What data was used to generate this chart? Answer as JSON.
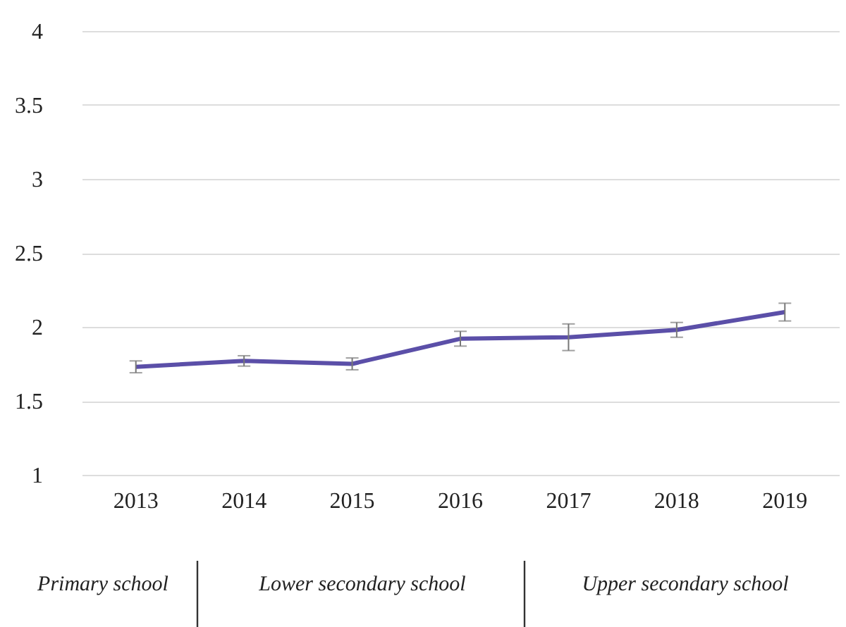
{
  "chart_data": {
    "type": "line",
    "categories": [
      "2013",
      "2014",
      "2015",
      "2016",
      "2017",
      "2018",
      "2019"
    ],
    "series": [
      {
        "color": "#5b4fa8",
        "values": [
          1.73,
          1.77,
          1.75,
          1.92,
          1.93,
          1.98,
          2.1
        ],
        "errors": [
          0.04,
          0.035,
          0.04,
          0.05,
          0.09,
          0.05,
          0.06
        ]
      }
    ],
    "ylim": [
      1,
      4
    ],
    "yticks": [
      1,
      1.5,
      2,
      2.5,
      3,
      3.5,
      4
    ],
    "grid": "y",
    "marker": "none",
    "line_style": "solid",
    "annotations": [
      "Primary school",
      "Lower secondary school",
      "Upper secondary school"
    ]
  }
}
